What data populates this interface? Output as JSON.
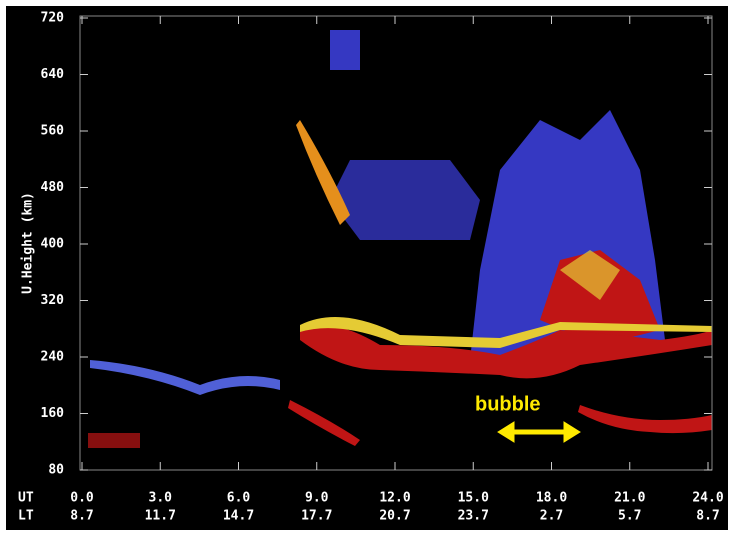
{
  "chart_data": {
    "type": "rti",
    "ylabel": "U.Height (km)",
    "ylim": [
      80,
      720
    ],
    "yticks": [
      80,
      160,
      240,
      320,
      400,
      480,
      560,
      640,
      720
    ],
    "xlim": [
      0,
      24
    ],
    "xrow_label": "UT",
    "xticks": [
      {
        "value": 0,
        "label": "0.0"
      },
      {
        "value": 3,
        "label": "3.0"
      },
      {
        "value": 6,
        "label": "6.0"
      },
      {
        "value": 9,
        "label": "9.0"
      },
      {
        "value": 12,
        "label": "12.0"
      },
      {
        "value": 15,
        "label": "15.0"
      },
      {
        "value": 18,
        "label": "18.0"
      },
      {
        "value": 21,
        "label": "21.0"
      },
      {
        "value": 24,
        "label": "24.0"
      }
    ],
    "x2row_label": "LT",
    "x2labels": [
      8.7,
      11.7,
      14.7,
      17.7,
      20.7,
      23.7,
      2.7,
      5.7,
      8.7
    ],
    "annotation": "bubble"
  }
}
